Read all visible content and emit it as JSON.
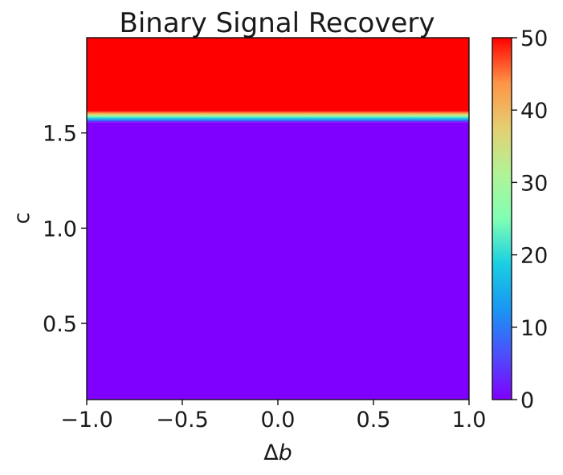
{
  "chart_data": {
    "type": "heatmap",
    "title": "Binary Signal Recovery",
    "xlabel": "Δb",
    "ylabel": "c",
    "xlim": [
      -1.0,
      1.0
    ],
    "ylim": [
      0.1,
      2.0
    ],
    "xticks": [
      -1.0,
      -0.5,
      0.0,
      0.5,
      1.0
    ],
    "xtick_labels": [
      "−1.0",
      "−0.5",
      "0.0",
      "0.5",
      "1.0"
    ],
    "yticks": [
      0.5,
      1.0,
      1.5
    ],
    "ytick_labels": [
      "0.5",
      "1.0",
      "1.5"
    ],
    "colormap": "rainbow",
    "colorbar": {
      "range": [
        0,
        50
      ],
      "ticks": [
        0,
        10,
        20,
        30,
        40,
        50
      ],
      "tick_labels": [
        "0",
        "10",
        "20",
        "30",
        "40",
        "50"
      ]
    },
    "regions": [
      {
        "c_from": 0.1,
        "c_to": 1.555,
        "value": 0
      },
      {
        "c_from": 1.555,
        "c_to": 1.615,
        "value": "transition 0→50"
      },
      {
        "c_from": 1.615,
        "c_to": 2.0,
        "value": 50
      }
    ],
    "transition": {
      "c_low": 1.555,
      "c_high": 1.615
    }
  }
}
